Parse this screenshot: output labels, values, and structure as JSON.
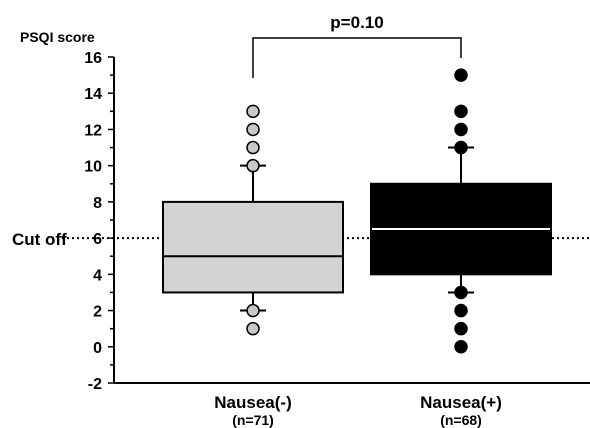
{
  "chart_data": {
    "type": "box",
    "ylabel": "PSQI score",
    "ylim": [
      -2,
      16
    ],
    "yticks": [
      -2,
      0,
      2,
      4,
      6,
      8,
      10,
      12,
      14,
      16
    ],
    "cutoff": {
      "label": "Cut off",
      "value": 6
    },
    "significance": {
      "label": "p=0.10",
      "between": [
        0,
        1
      ]
    },
    "groups": [
      {
        "name": "Nausea(-)",
        "n_label": "(n=71)",
        "fill": "#d3d3d3",
        "median_color": "#000000",
        "outlier_color": "#c8c8c8",
        "whisker_low": 2,
        "q1": 3,
        "median": 5,
        "q3": 8,
        "whisker_high": 10,
        "outliers": [
          1,
          2,
          10,
          11,
          12,
          13
        ]
      },
      {
        "name": "Nausea(+)",
        "n_label": "(n=68)",
        "fill": "#000000",
        "median_color": "#ffffff",
        "outlier_color": "#000000",
        "whisker_low": 3,
        "q1": 4,
        "median": 6.5,
        "q3": 9,
        "whisker_high": 11,
        "outliers": [
          0,
          1,
          2,
          3,
          11,
          12,
          13,
          15
        ]
      }
    ]
  }
}
